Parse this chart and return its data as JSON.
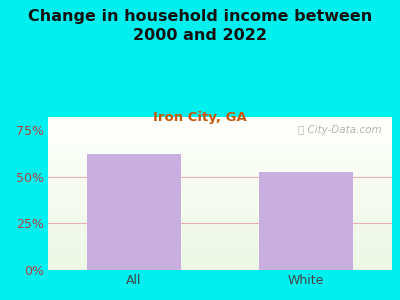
{
  "title": "Change in household income between\n2000 and 2022",
  "subtitle": "Iron City, GA",
  "categories": [
    "All",
    "White"
  ],
  "values": [
    62.0,
    52.5
  ],
  "bar_color": "#c9aee0",
  "background_color": "#00EFEF",
  "title_fontsize": 11.5,
  "subtitle_fontsize": 9.5,
  "tick_label_fontsize": 9,
  "yticks": [
    0,
    25,
    50,
    75
  ],
  "ylim": [
    0,
    82
  ],
  "grid_line_color": "#e8b0b0",
  "subtitle_color": "#cc5500",
  "tick_color": "#aa4444",
  "watermark": "ⓘ City-Data.com",
  "xtick_color": "#444444"
}
